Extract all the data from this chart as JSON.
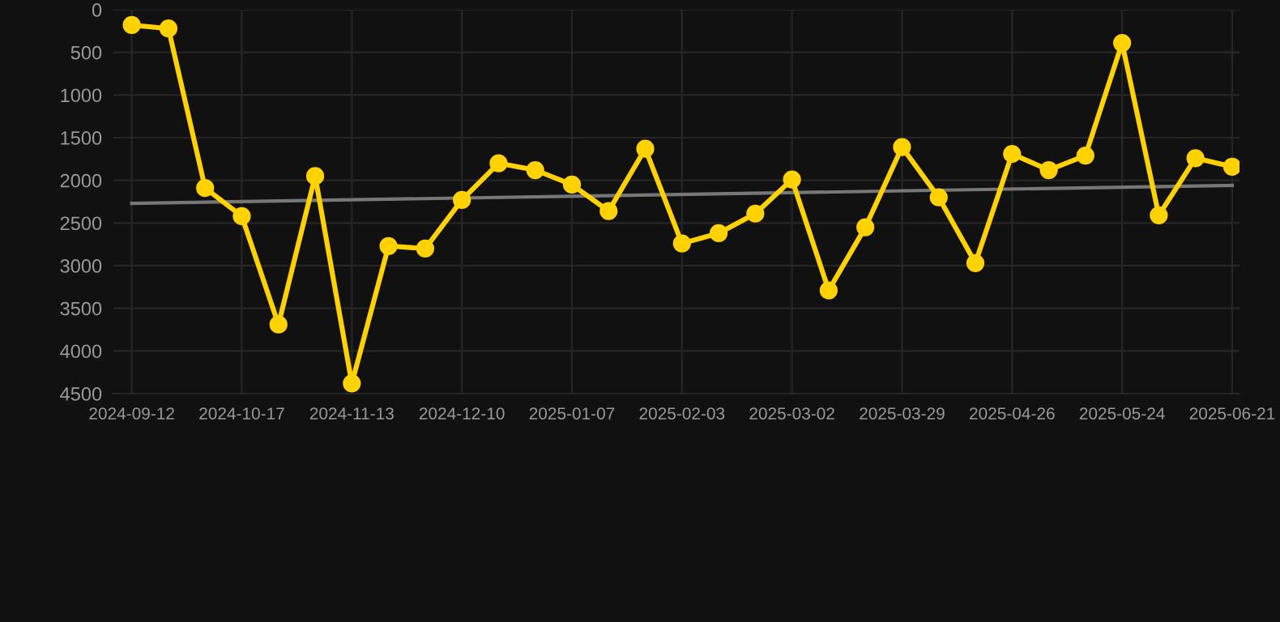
{
  "chart_data": {
    "type": "line",
    "categories": [
      "2024-09-12",
      null,
      null,
      "2024-10-17",
      null,
      null,
      "2024-11-13",
      null,
      null,
      "2024-12-10",
      null,
      null,
      "2025-01-07",
      null,
      null,
      "2025-02-03",
      null,
      null,
      "2025-03-02",
      null,
      null,
      "2025-03-29",
      null,
      null,
      "2025-04-26",
      null,
      null,
      "2025-05-24",
      null,
      null,
      "2025-06-21"
    ],
    "series": [
      {
        "color": "#ffd200",
        "marker": "circle",
        "values": [
          180,
          220,
          2090,
          2420,
          3690,
          1950,
          4380,
          2770,
          2800,
          2230,
          1800,
          1880,
          2050,
          2360,
          1630,
          2740,
          2620,
          2390,
          1990,
          3290,
          2550,
          1610,
          2200,
          2970,
          1690,
          1880,
          1710,
          390,
          2410,
          1740,
          1840
        ]
      },
      {
        "type": "line",
        "color": "#777777",
        "marker": "none",
        "values": [
          2270,
          null,
          null,
          null,
          null,
          null,
          null,
          null,
          null,
          null,
          null,
          null,
          null,
          null,
          null,
          null,
          null,
          null,
          null,
          null,
          null,
          null,
          null,
          null,
          null,
          null,
          null,
          null,
          null,
          null,
          2060
        ]
      }
    ],
    "ylim": [
      4500,
      0
    ],
    "yticks": [
      0,
      500,
      1000,
      1500,
      2000,
      2500,
      3000,
      3500,
      4000,
      4500
    ],
    "grid": true
  }
}
